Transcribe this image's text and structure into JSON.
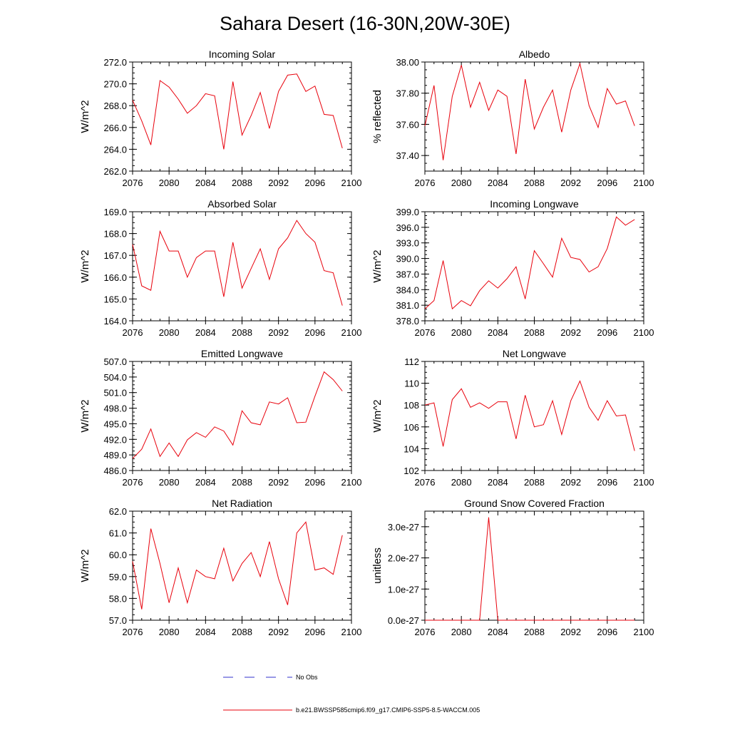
{
  "figure_title": "Sahara Desert (16-30N,20W-30E)",
  "legend": {
    "obs_label": "No Obs",
    "obs_color": "#3333cc",
    "model_label": "b.e21.BWSSP585cmip6.f09_g17.CMIP6-SSP5-8.5-WACCM.005",
    "model_color": "#e8000b"
  },
  "chart_data": [
    {
      "type": "line",
      "title": "Incoming Solar",
      "xlabel": "",
      "ylabel": "W/m^2",
      "xlim": [
        2076,
        2100
      ],
      "ylim": [
        262,
        272
      ],
      "xticks": [
        "2076",
        "2080",
        "2084",
        "2088",
        "2092",
        "2096",
        "2100"
      ],
      "yticks": [
        "262.0",
        "264.0",
        "266.0",
        "268.0",
        "270.0",
        "272.0"
      ],
      "x": [
        2076,
        2077,
        2078,
        2079,
        2080,
        2081,
        2082,
        2083,
        2084,
        2085,
        2086,
        2087,
        2088,
        2089,
        2090,
        2091,
        2092,
        2093,
        2094,
        2095,
        2096,
        2097,
        2098,
        2099
      ],
      "values": [
        268.5,
        266.6,
        264.4,
        270.3,
        269.7,
        268.6,
        267.3,
        268.0,
        269.1,
        268.9,
        264.0,
        270.2,
        265.3,
        267.1,
        269.2,
        265.9,
        269.3,
        270.8,
        270.9,
        269.3,
        269.8,
        267.2,
        267.1,
        264.1
      ]
    },
    {
      "type": "line",
      "title": "Albedo",
      "xlabel": "",
      "ylabel": "% reflected",
      "xlim": [
        2076,
        2100
      ],
      "ylim": [
        37.3,
        38.0
      ],
      "xticks": [
        "2076",
        "2080",
        "2084",
        "2088",
        "2092",
        "2096",
        "2100"
      ],
      "yticks": [
        "37.40",
        "37.60",
        "37.80",
        "38.00"
      ],
      "x": [
        2076,
        2077,
        2078,
        2079,
        2080,
        2081,
        2082,
        2083,
        2084,
        2085,
        2086,
        2087,
        2088,
        2089,
        2090,
        2091,
        2092,
        2093,
        2094,
        2095,
        2096,
        2097,
        2098,
        2099
      ],
      "values": [
        37.59,
        37.85,
        37.37,
        37.78,
        37.98,
        37.71,
        37.87,
        37.69,
        37.82,
        37.78,
        37.41,
        37.89,
        37.57,
        37.71,
        37.82,
        37.55,
        37.82,
        37.99,
        37.72,
        37.58,
        37.83,
        37.73,
        37.75,
        37.59
      ]
    },
    {
      "type": "line",
      "title": "Absorbed Solar",
      "xlabel": "",
      "ylabel": "W/m^2",
      "xlim": [
        2076,
        2100
      ],
      "ylim": [
        164,
        169
      ],
      "xticks": [
        "2076",
        "2080",
        "2084",
        "2088",
        "2092",
        "2096",
        "2100"
      ],
      "yticks": [
        "164.0",
        "165.0",
        "166.0",
        "167.0",
        "168.0",
        "169.0"
      ],
      "x": [
        2076,
        2077,
        2078,
        2079,
        2080,
        2081,
        2082,
        2083,
        2084,
        2085,
        2086,
        2087,
        2088,
        2089,
        2090,
        2091,
        2092,
        2093,
        2094,
        2095,
        2096,
        2097,
        2098,
        2099
      ],
      "values": [
        167.5,
        165.6,
        165.4,
        168.1,
        167.2,
        167.2,
        166.0,
        166.9,
        167.2,
        167.2,
        165.1,
        167.6,
        165.5,
        166.4,
        167.3,
        165.9,
        167.3,
        167.8,
        168.6,
        168.0,
        167.6,
        166.3,
        166.2,
        164.7
      ]
    },
    {
      "type": "line",
      "title": "Incoming Longwave",
      "xlabel": "",
      "ylabel": "W/m^2",
      "xlim": [
        2076,
        2100
      ],
      "ylim": [
        378,
        399
      ],
      "xticks": [
        "2076",
        "2080",
        "2084",
        "2088",
        "2092",
        "2096",
        "2100"
      ],
      "yticks": [
        "378.0",
        "381.0",
        "384.0",
        "387.0",
        "390.0",
        "393.0",
        "396.0",
        "399.0"
      ],
      "x": [
        2076,
        2077,
        2078,
        2079,
        2080,
        2081,
        2082,
        2083,
        2084,
        2085,
        2086,
        2087,
        2088,
        2089,
        2090,
        2091,
        2092,
        2093,
        2094,
        2095,
        2096,
        2097,
        2098,
        2099
      ],
      "values": [
        380.3,
        381.9,
        389.6,
        380.3,
        381.9,
        380.9,
        383.8,
        385.7,
        384.3,
        386.1,
        388.4,
        382.2,
        391.5,
        389.0,
        386.4,
        393.9,
        390.2,
        389.8,
        387.4,
        388.4,
        391.9,
        398.0,
        396.4,
        397.5
      ]
    },
    {
      "type": "line",
      "title": "Emitted Longwave",
      "xlabel": "",
      "ylabel": "W/m^2",
      "xlim": [
        2076,
        2100
      ],
      "ylim": [
        486,
        507
      ],
      "xticks": [
        "2076",
        "2080",
        "2084",
        "2088",
        "2092",
        "2096",
        "2100"
      ],
      "yticks": [
        "486.0",
        "489.0",
        "492.0",
        "495.0",
        "498.0",
        "501.0",
        "504.0",
        "507.0"
      ],
      "x": [
        2076,
        2077,
        2078,
        2079,
        2080,
        2081,
        2082,
        2083,
        2084,
        2085,
        2086,
        2087,
        2088,
        2089,
        2090,
        2091,
        2092,
        2093,
        2094,
        2095,
        2096,
        2097,
        2098,
        2099
      ],
      "values": [
        488.3,
        490.1,
        494.0,
        488.7,
        491.3,
        488.7,
        491.9,
        493.3,
        492.4,
        494.4,
        493.6,
        490.9,
        497.5,
        495.2,
        494.8,
        499.2,
        498.8,
        500.0,
        495.2,
        495.3,
        500.3,
        505.0,
        503.5,
        501.3
      ]
    },
    {
      "type": "line",
      "title": "Net Longwave",
      "xlabel": "",
      "ylabel": "W/m^2",
      "xlim": [
        2076,
        2100
      ],
      "ylim": [
        102,
        112
      ],
      "xticks": [
        "2076",
        "2080",
        "2084",
        "2088",
        "2092",
        "2096",
        "2100"
      ],
      "yticks": [
        "102",
        "104",
        "106",
        "108",
        "110",
        "112"
      ],
      "x": [
        2076,
        2077,
        2078,
        2079,
        2080,
        2081,
        2082,
        2083,
        2084,
        2085,
        2086,
        2087,
        2088,
        2089,
        2090,
        2091,
        2092,
        2093,
        2094,
        2095,
        2096,
        2097,
        2098,
        2099
      ],
      "values": [
        108.0,
        108.2,
        104.2,
        108.5,
        109.5,
        107.8,
        108.2,
        107.7,
        108.3,
        108.3,
        104.9,
        108.9,
        106.0,
        106.2,
        108.4,
        105.3,
        108.4,
        110.2,
        107.8,
        106.6,
        108.4,
        107.0,
        107.1,
        103.8
      ]
    },
    {
      "type": "line",
      "title": "Net Radiation",
      "xlabel": "",
      "ylabel": "W/m^2",
      "xlim": [
        2076,
        2100
      ],
      "ylim": [
        57,
        62
      ],
      "xticks": [
        "2076",
        "2080",
        "2084",
        "2088",
        "2092",
        "2096",
        "2100"
      ],
      "yticks": [
        "57.0",
        "58.0",
        "59.0",
        "60.0",
        "61.0",
        "62.0"
      ],
      "x": [
        2076,
        2077,
        2078,
        2079,
        2080,
        2081,
        2082,
        2083,
        2084,
        2085,
        2086,
        2087,
        2088,
        2089,
        2090,
        2091,
        2092,
        2093,
        2094,
        2095,
        2096,
        2097,
        2098,
        2099
      ],
      "values": [
        59.7,
        57.5,
        61.2,
        59.6,
        57.8,
        59.4,
        57.8,
        59.3,
        59.0,
        58.9,
        60.3,
        58.8,
        59.6,
        60.1,
        59.0,
        60.6,
        58.9,
        57.7,
        61.0,
        61.5,
        59.3,
        59.4,
        59.1,
        60.9
      ]
    },
    {
      "type": "line",
      "title": "Ground Snow Covered Fraction",
      "xlabel": "",
      "ylabel": "unitless",
      "xlim": [
        2076,
        2100
      ],
      "ylim": [
        0,
        3.5e-27
      ],
      "xticks": [
        "2076",
        "2080",
        "2084",
        "2088",
        "2092",
        "2096",
        "2100"
      ],
      "yticks": [
        "0.0e-27",
        "1.0e-27",
        "2.0e-27",
        "3.0e-27"
      ],
      "x": [
        2076,
        2077,
        2078,
        2079,
        2080,
        2081,
        2082,
        2083,
        2084,
        2085,
        2086,
        2087,
        2088,
        2089,
        2090,
        2091,
        2092,
        2093,
        2094,
        2095,
        2096,
        2097,
        2098,
        2099
      ],
      "values": [
        0,
        0,
        0,
        0,
        0,
        0,
        0,
        3.3e-27,
        0,
        0,
        0,
        0,
        0,
        0,
        0,
        0,
        0,
        0,
        0,
        0,
        0,
        0,
        0,
        0
      ]
    }
  ]
}
